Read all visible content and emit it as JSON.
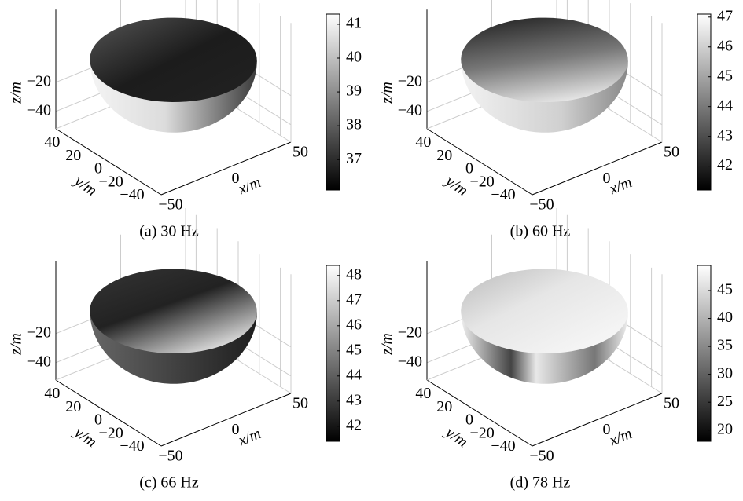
{
  "chart_data": [
    {
      "type": "surface3d",
      "caption": "(a) 30 Hz",
      "xlabel": "x/m",
      "ylabel": "y/m",
      "zlabel": "z/m",
      "xlim": [
        -50,
        50
      ],
      "ylim": [
        -50,
        50
      ],
      "zlim": [
        -52,
        30
      ],
      "xticks": [
        {
          "value": -50,
          "label": "−50"
        },
        0,
        50
      ],
      "yticks": [
        40,
        20,
        0,
        {
          "value": -20,
          "label": "−20"
        },
        {
          "value": -40,
          "label": "−40"
        }
      ],
      "zticks": [
        {
          "value": -20,
          "label": "−20"
        },
        {
          "value": -40,
          "label": "−40"
        }
      ],
      "colormap": "gray",
      "clim": [
        36.1,
        41.3
      ],
      "cticks": [
        37,
        38,
        39,
        40,
        41
      ]
    },
    {
      "type": "surface3d",
      "caption": "(b) 60 Hz",
      "xlabel": "x/m",
      "ylabel": "y/m",
      "zlabel": "z/m",
      "xlim": [
        -50,
        50
      ],
      "ylim": [
        -50,
        50
      ],
      "zlim": [
        -52,
        30
      ],
      "xticks": [
        {
          "value": -50,
          "label": "−50"
        },
        0,
        50
      ],
      "yticks": [
        40,
        20,
        0,
        {
          "value": -20,
          "label": "−20"
        },
        {
          "value": -40,
          "label": "−40"
        }
      ],
      "zticks": [
        {
          "value": -20,
          "label": "−20"
        },
        {
          "value": -40,
          "label": "−40"
        }
      ],
      "colormap": "gray",
      "clim": [
        41.2,
        47.1
      ],
      "cticks": [
        42,
        43,
        44,
        45,
        46,
        47
      ]
    },
    {
      "type": "surface3d",
      "caption": "(c) 66 Hz",
      "xlabel": "x/m",
      "ylabel": "y/m",
      "zlabel": "z/m",
      "xlim": [
        -50,
        50
      ],
      "ylim": [
        -50,
        50
      ],
      "zlim": [
        -52,
        30
      ],
      "xticks": [
        {
          "value": -50,
          "label": "−50"
        },
        0,
        50
      ],
      "yticks": [
        40,
        20,
        0,
        {
          "value": -20,
          "label": "−20"
        },
        {
          "value": -40,
          "label": "−40"
        }
      ],
      "zticks": [
        {
          "value": -20,
          "label": "−20"
        },
        {
          "value": -40,
          "label": "−40"
        }
      ],
      "colormap": "gray",
      "clim": [
        41.4,
        48.4
      ],
      "cticks": [
        42,
        43,
        44,
        45,
        46,
        47,
        48
      ]
    },
    {
      "type": "surface3d",
      "caption": "(d) 78 Hz",
      "xlabel": "x/m",
      "ylabel": "y/m",
      "zlabel": "z/m",
      "xlim": [
        -50,
        50
      ],
      "ylim": [
        -50,
        50
      ],
      "zlim": [
        -52,
        30
      ],
      "xticks": [
        {
          "value": -50,
          "label": "−50"
        },
        0,
        50
      ],
      "yticks": [
        40,
        20,
        0,
        {
          "value": -20,
          "label": "−20"
        },
        {
          "value": -40,
          "label": "−40"
        }
      ],
      "zticks": [
        {
          "value": -20,
          "label": "−20"
        },
        {
          "value": -40,
          "label": "−40"
        }
      ],
      "colormap": "gray",
      "clim": [
        18,
        49.5
      ],
      "cticks": [
        20,
        25,
        30,
        35,
        40,
        45
      ]
    }
  ]
}
